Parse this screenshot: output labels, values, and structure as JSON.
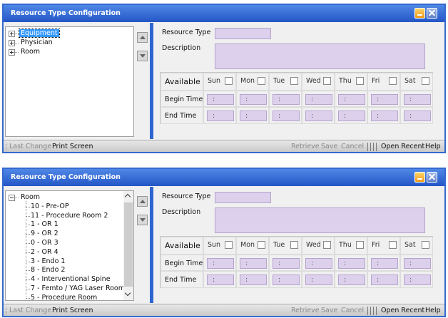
{
  "windows": [
    {
      "title": "Resource Type Configuration",
      "tree": {
        "scrollbar": false,
        "items": [
          {
            "label": "Equipment",
            "selected": true
          },
          {
            "label": "Physician"
          },
          {
            "label": "Room"
          }
        ]
      },
      "form": {
        "resource_type_label": "Resource Type",
        "description_label": "Description",
        "schedule": {
          "available_label": "Available",
          "begin_time_label": "Begin Time",
          "end_time_label": "End Time",
          "days": [
            "Sun",
            "Mon",
            "Tue",
            "Wed",
            "Thu",
            "Fri",
            "Sat"
          ],
          "time_placeholder": ":"
        }
      },
      "status_bar": {
        "left": [
          {
            "label": "Last Change",
            "enabled": false
          },
          {
            "label": "Print Screen",
            "enabled": true
          }
        ],
        "right": [
          {
            "label": "Retrieve",
            "enabled": false
          },
          {
            "label": "Save",
            "enabled": false
          },
          {
            "label": "Cancel",
            "enabled": false
          },
          {
            "label": "Open Recent",
            "enabled": true
          },
          {
            "label": "Help",
            "enabled": true
          }
        ]
      }
    },
    {
      "title": "Resource Type Configuration",
      "tree": {
        "scrollbar": true,
        "items": [
          {
            "label": "Room",
            "children": [
              "10 - Pre-OP",
              "11 - Procedure Room 2",
              "1 - OR 1",
              "9 - OR 2",
              "0 - OR 3",
              "2 - OR 4",
              "3 - Endo 1",
              "8 - Endo 2",
              "4 - Interventional Spine",
              "7 - Femto / YAG Laser Room",
              "5 - Procedure Room"
            ]
          }
        ]
      },
      "form": {
        "resource_type_label": "Resource Type",
        "description_label": "Description",
        "schedule": {
          "available_label": "Available",
          "begin_time_label": "Begin Time",
          "end_time_label": "End Time",
          "days": [
            "Sun",
            "Mon",
            "Tue",
            "Wed",
            "Thu",
            "Fri",
            "Sat"
          ],
          "time_placeholder": ":"
        }
      },
      "status_bar": {
        "left": [
          {
            "label": "Last Change",
            "enabled": false
          },
          {
            "label": "Print Screen",
            "enabled": true
          }
        ],
        "right": [
          {
            "label": "Retrieve",
            "enabled": false
          },
          {
            "label": "Save",
            "enabled": false
          },
          {
            "label": "Cancel",
            "enabled": false
          },
          {
            "label": "Open Recent",
            "enabled": true
          },
          {
            "label": "Help",
            "enabled": true
          }
        ]
      }
    }
  ]
}
